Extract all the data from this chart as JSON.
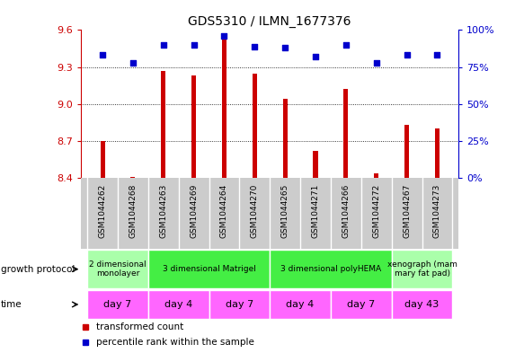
{
  "title": "GDS5310 / ILMN_1677376",
  "samples": [
    "GSM1044262",
    "GSM1044268",
    "GSM1044263",
    "GSM1044269",
    "GSM1044264",
    "GSM1044270",
    "GSM1044265",
    "GSM1044271",
    "GSM1044266",
    "GSM1044272",
    "GSM1044267",
    "GSM1044273"
  ],
  "transformed_count": [
    8.7,
    8.41,
    9.27,
    9.23,
    9.55,
    9.25,
    9.04,
    8.62,
    9.12,
    8.44,
    8.83,
    8.8
  ],
  "percentile_rank": [
    83,
    78,
    90,
    90,
    96,
    89,
    88,
    82,
    90,
    78,
    83,
    83
  ],
  "ylim_left": [
    8.4,
    9.6
  ],
  "ylim_right": [
    0,
    100
  ],
  "yticks_left": [
    8.4,
    8.7,
    9.0,
    9.3,
    9.6
  ],
  "yticks_right": [
    0,
    25,
    50,
    75,
    100
  ],
  "bar_color": "#cc0000",
  "dot_color": "#0000cc",
  "sample_bg_color": "#cccccc",
  "growth_protocols": [
    {
      "label": "2 dimensional\nmonolayer",
      "start": 0,
      "end": 2,
      "color": "#aaffaa"
    },
    {
      "label": "3 dimensional Matrigel",
      "start": 2,
      "end": 6,
      "color": "#44ee44"
    },
    {
      "label": "3 dimensional polyHEMA",
      "start": 6,
      "end": 10,
      "color": "#44ee44"
    },
    {
      "label": "xenograph (mam\nmary fat pad)",
      "start": 10,
      "end": 12,
      "color": "#aaffaa"
    }
  ],
  "time_groups": [
    {
      "label": "day 7",
      "start": 0,
      "end": 2
    },
    {
      "label": "day 4",
      "start": 2,
      "end": 4
    },
    {
      "label": "day 7",
      "start": 4,
      "end": 6
    },
    {
      "label": "day 4",
      "start": 6,
      "end": 8
    },
    {
      "label": "day 7",
      "start": 8,
      "end": 10
    },
    {
      "label": "day 43",
      "start": 10,
      "end": 12
    }
  ],
  "time_color": "#ff66ff",
  "bar_width": 0.15
}
